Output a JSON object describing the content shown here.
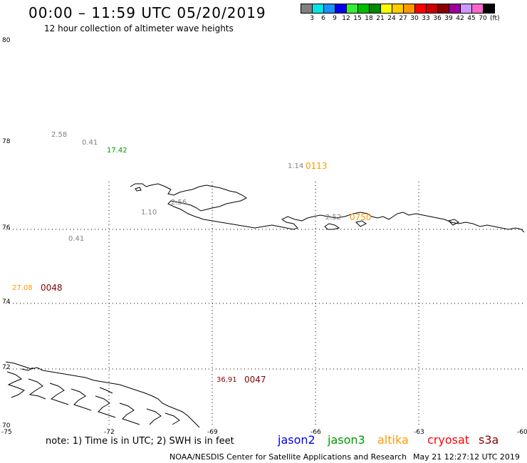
{
  "header": {
    "title": "00:00 – 11:59 UTC 05/20/2019",
    "subtitle": "12 hour collection of altimeter wave heights"
  },
  "color_scale": {
    "labels": [
      "3",
      "6",
      "9",
      "12",
      "15",
      "18",
      "21",
      "24",
      "27",
      "30",
      "33",
      "36",
      "39",
      "42",
      "45",
      "70"
    ],
    "unit": "(ft)",
    "colors": [
      "#808080",
      "#00e5e5",
      "#1e90ff",
      "#0000ee",
      "#33ee33",
      "#00bb00",
      "#008800",
      "#ffff00",
      "#ffcc00",
      "#ff9900",
      "#ff0000",
      "#cc0000",
      "#880000",
      "#990099",
      "#cc99ff",
      "#ff66cc",
      "#000000"
    ]
  },
  "axes": {
    "lat_labels": [
      "80",
      "78",
      "76",
      "74",
      "72",
      "70"
    ],
    "lon_labels": [
      "-75",
      "-72",
      "-69",
      "-66",
      "-63",
      "-60"
    ]
  },
  "observations": [
    {
      "value": "2.58",
      "color": "#808080"
    },
    {
      "value": "0.41",
      "color": "#808080"
    },
    {
      "value": "17.42",
      "color": "#009900"
    },
    {
      "value": "1.14",
      "color": "#808080"
    },
    {
      "value": "0113",
      "color": "#ff9900"
    },
    {
      "value": "2.56",
      "color": "#808080"
    },
    {
      "value": "1.10",
      "color": "#808080"
    },
    {
      "value": "2.52",
      "color": "#808080"
    },
    {
      "value": "0750",
      "color": "#ff9900"
    },
    {
      "value": "0.41",
      "color": "#808080"
    },
    {
      "value": "27.08",
      "color": "#ff9900"
    },
    {
      "value": "0048",
      "color": "#880000"
    },
    {
      "value": "36.91",
      "color": "#880000"
    },
    {
      "value": "0047",
      "color": "#880000"
    }
  ],
  "footer": {
    "note": "note:  1) Time is in UTC;  2) SWH is in feet",
    "satellites": [
      {
        "name": "jason2",
        "color": "#0000ee"
      },
      {
        "name": "jason3",
        "color": "#009900"
      },
      {
        "name": "altika",
        "color": "#ff9900"
      },
      {
        "name": "cryosat",
        "color": "#ff0000"
      },
      {
        "name": "s3a",
        "color": "#880000"
      }
    ],
    "credit": "NOAA/NESDIS Center for Satellite Applications and Research",
    "timestamp": "May 21 12:27:12 UTC 2019"
  }
}
